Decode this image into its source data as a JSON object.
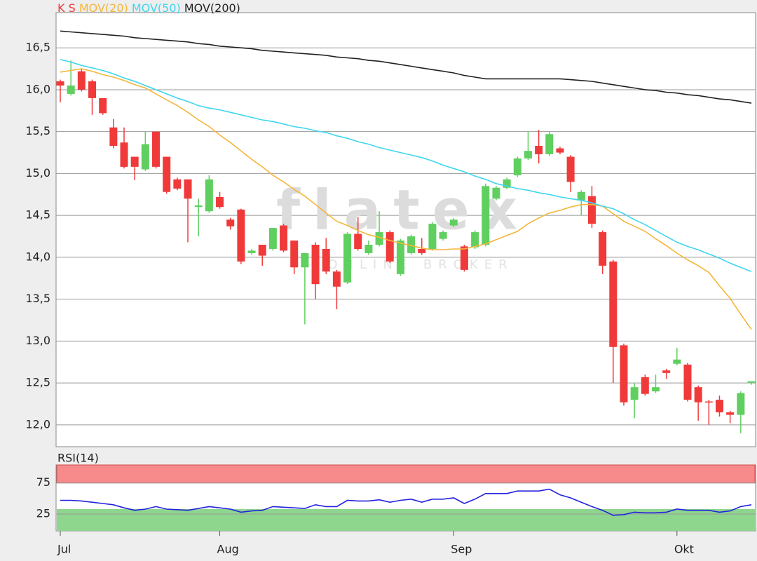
{
  "chart_data": [
    {
      "type": "candlestick",
      "name": "K S",
      "up_color": "#5fcf5f",
      "down_color": "#f03a3a",
      "ylim": [
        11.74,
        16.92
      ],
      "yticks": [
        {
          "value": 12,
          "label": "12,0"
        },
        {
          "value": 12.5,
          "label": "12,5"
        },
        {
          "value": 13,
          "label": "13,0"
        },
        {
          "value": 13.5,
          "label": "13,5"
        },
        {
          "value": 14,
          "label": "14,0"
        },
        {
          "value": 14.5,
          "label": "14,5"
        },
        {
          "value": 15,
          "label": "15,0"
        },
        {
          "value": 15.5,
          "label": "15,5"
        },
        {
          "value": 16,
          "label": "16,0"
        },
        {
          "value": 16.5,
          "label": "16,5"
        }
      ],
      "grid": true,
      "watermark": "flatex",
      "watermark_sub": "ONLINE BROKER",
      "categories": [
        "Jul",
        null,
        null,
        null,
        null,
        null,
        null,
        null,
        null,
        null,
        null,
        null,
        null,
        null,
        null,
        "Aug",
        null,
        null,
        null,
        null,
        null,
        null,
        null,
        null,
        null,
        null,
        null,
        null,
        null,
        null,
        null,
        null,
        null,
        null,
        null,
        null,
        null,
        "Sep",
        null,
        null,
        null,
        null,
        null,
        null,
        null,
        null,
        null,
        null,
        null,
        null,
        null,
        null,
        null,
        null,
        null,
        null,
        null,
        null,
        "Okt",
        null,
        null,
        null,
        null,
        null,
        null,
        null
      ],
      "open": [
        16.1,
        15.95,
        16.22,
        16.1,
        15.9,
        15.55,
        15.37,
        15.2,
        15.05,
        15.5,
        15.2,
        14.93,
        14.93,
        14.6,
        14.55,
        14.72,
        14.45,
        14.57,
        14.05,
        14.15,
        14.1,
        14.38,
        14.2,
        13.88,
        14.15,
        14.1,
        13.83,
        13.7,
        14.28,
        14.05,
        14.15,
        14.3,
        13.8,
        14.05,
        14.1,
        14.1,
        14.22,
        14.38,
        14.13,
        14.12,
        14.15,
        14.7,
        14.83,
        14.98,
        15.18,
        15.33,
        15.23,
        15.3,
        15.2,
        14.68,
        14.73,
        14.3,
        13.95,
        12.95,
        12.3,
        12.57,
        12.4,
        12.65,
        12.73,
        12.72,
        12.45,
        12.28,
        12.3,
        12.15,
        12.12,
        12.5
      ],
      "high": [
        16.12,
        16.35,
        16.25,
        16.12,
        15.9,
        15.65,
        15.55,
        15.2,
        15.5,
        15.5,
        15.2,
        14.95,
        14.93,
        14.7,
        14.98,
        14.78,
        14.47,
        14.58,
        14.1,
        14.15,
        14.35,
        14.4,
        14.2,
        14.05,
        14.18,
        14.23,
        13.85,
        14.3,
        14.48,
        14.2,
        14.55,
        14.32,
        14.22,
        14.27,
        14.23,
        14.42,
        14.32,
        14.47,
        14.15,
        14.32,
        14.88,
        14.85,
        14.95,
        15.2,
        15.5,
        15.52,
        15.5,
        15.32,
        15.22,
        14.8,
        14.85,
        14.32,
        13.97,
        12.97,
        12.5,
        12.6,
        12.6,
        12.67,
        12.92,
        12.74,
        12.47,
        12.3,
        12.35,
        12.17,
        12.4,
        12.52
      ],
      "low": [
        15.85,
        15.93,
        15.98,
        15.7,
        15.7,
        15.3,
        15.06,
        14.92,
        15.03,
        15.06,
        14.76,
        14.8,
        14.18,
        14.25,
        14.53,
        14.58,
        14.33,
        13.92,
        14.03,
        13.9,
        14.08,
        14.06,
        13.8,
        13.2,
        13.5,
        13.8,
        13.38,
        13.68,
        14.08,
        14.03,
        14.13,
        13.93,
        13.78,
        14.03,
        14.03,
        14.08,
        14.2,
        14.36,
        13.83,
        14.1,
        14.13,
        14.68,
        14.81,
        14.96,
        15.16,
        15.12,
        15.21,
        15.23,
        14.78,
        14.5,
        14.35,
        13.8,
        12.5,
        12.23,
        12.08,
        12.35,
        12.38,
        12.55,
        12.71,
        12.28,
        12.05,
        12.0,
        12.1,
        12.02,
        11.9,
        12.48
      ],
      "close": [
        16.05,
        16.05,
        16.0,
        15.9,
        15.72,
        15.33,
        15.08,
        15.08,
        15.35,
        15.08,
        14.78,
        14.82,
        14.7,
        14.62,
        14.93,
        14.6,
        14.37,
        13.95,
        14.08,
        14.02,
        14.35,
        14.08,
        13.88,
        14.05,
        13.68,
        13.83,
        13.65,
        14.28,
        14.1,
        14.15,
        14.3,
        13.95,
        14.2,
        14.25,
        14.05,
        14.4,
        14.3,
        14.45,
        13.85,
        14.3,
        14.85,
        14.83,
        14.93,
        15.18,
        15.27,
        15.23,
        15.47,
        15.25,
        14.9,
        14.78,
        14.4,
        13.9,
        12.93,
        12.27,
        12.45,
        12.37,
        12.45,
        12.62,
        12.78,
        12.3,
        12.27,
        12.27,
        12.15,
        12.12,
        12.38,
        12.52
      ],
      "series": [
        {
          "name": "MOV(20)",
          "color": "#f5b63a",
          "values": [
            16.21,
            16.23,
            16.25,
            16.22,
            16.18,
            16.15,
            16.11,
            16.06,
            16.02,
            15.95,
            15.88,
            15.81,
            15.73,
            15.64,
            15.56,
            15.46,
            15.37,
            15.27,
            15.17,
            15.08,
            14.98,
            14.9,
            14.81,
            14.73,
            14.63,
            14.53,
            14.43,
            14.38,
            14.32,
            14.27,
            14.24,
            14.2,
            14.17,
            14.14,
            14.11,
            14.09,
            14.09,
            14.1,
            14.1,
            14.13,
            14.16,
            14.21,
            14.26,
            14.31,
            14.4,
            14.47,
            14.53,
            14.56,
            14.6,
            14.63,
            14.63,
            14.61,
            14.52,
            14.43,
            14.37,
            14.31,
            14.22,
            14.14,
            14.05,
            13.97,
            13.9,
            13.82,
            13.66,
            13.51,
            13.32,
            13.14
          ]
        },
        {
          "name": "MOV(50)",
          "color": "#3fd6ee",
          "values": [
            16.36,
            16.33,
            16.29,
            16.26,
            16.23,
            16.19,
            16.14,
            16.1,
            16.05,
            16.0,
            15.95,
            15.9,
            15.86,
            15.81,
            15.78,
            15.76,
            15.73,
            15.7,
            15.67,
            15.64,
            15.62,
            15.59,
            15.56,
            15.54,
            15.51,
            15.49,
            15.45,
            15.42,
            15.38,
            15.35,
            15.31,
            15.28,
            15.25,
            15.22,
            15.19,
            15.15,
            15.1,
            15.06,
            15.02,
            14.97,
            14.93,
            14.88,
            14.85,
            14.82,
            14.8,
            14.77,
            14.75,
            14.72,
            14.7,
            14.68,
            14.65,
            14.61,
            14.58,
            14.52,
            14.45,
            14.39,
            14.32,
            14.25,
            14.18,
            14.13,
            14.09,
            14.04,
            13.99,
            13.93,
            13.88,
            13.83
          ]
        },
        {
          "name": "MOV(200)",
          "color": "#222222",
          "values": [
            16.7,
            16.69,
            16.68,
            16.67,
            16.66,
            16.65,
            16.64,
            16.62,
            16.61,
            16.6,
            16.59,
            16.58,
            16.57,
            16.55,
            16.54,
            16.52,
            16.51,
            16.5,
            16.49,
            16.47,
            16.46,
            16.45,
            16.44,
            16.43,
            16.42,
            16.41,
            16.39,
            16.38,
            16.37,
            16.35,
            16.34,
            16.32,
            16.3,
            16.28,
            16.26,
            16.24,
            16.22,
            16.2,
            16.17,
            16.15,
            16.13,
            16.13,
            16.13,
            16.13,
            16.13,
            16.13,
            16.13,
            16.13,
            16.12,
            16.11,
            16.1,
            16.08,
            16.06,
            16.04,
            16.02,
            16.0,
            15.99,
            15.97,
            15.96,
            15.94,
            15.93,
            15.91,
            15.89,
            15.88,
            15.86,
            15.84
          ]
        }
      ]
    },
    {
      "type": "line",
      "ylim": [
        -2,
        104
      ],
      "yticks": [
        25,
        75
      ],
      "bands": [
        {
          "from": 75,
          "to": 104,
          "color": "#f78a8a"
        },
        {
          "from": -2,
          "to": 33,
          "color": "#8ed68e"
        }
      ],
      "series": [
        {
          "name": "RSI(14)",
          "color": "#2222dd",
          "values": [
            47,
            47,
            46,
            44,
            42,
            40,
            35,
            31,
            33,
            37,
            33,
            32,
            31,
            34,
            37,
            35,
            33,
            28,
            30,
            31,
            37,
            36,
            35,
            34,
            40,
            37,
            37,
            47,
            46,
            46,
            48,
            44,
            47,
            49,
            44,
            49,
            49,
            51,
            42,
            49,
            58,
            58,
            58,
            62,
            62,
            62,
            65,
            56,
            51,
            44,
            37,
            31,
            23,
            24,
            28,
            27,
            27,
            28,
            33,
            31,
            31,
            31,
            28,
            30,
            37,
            40
          ]
        }
      ]
    }
  ]
}
